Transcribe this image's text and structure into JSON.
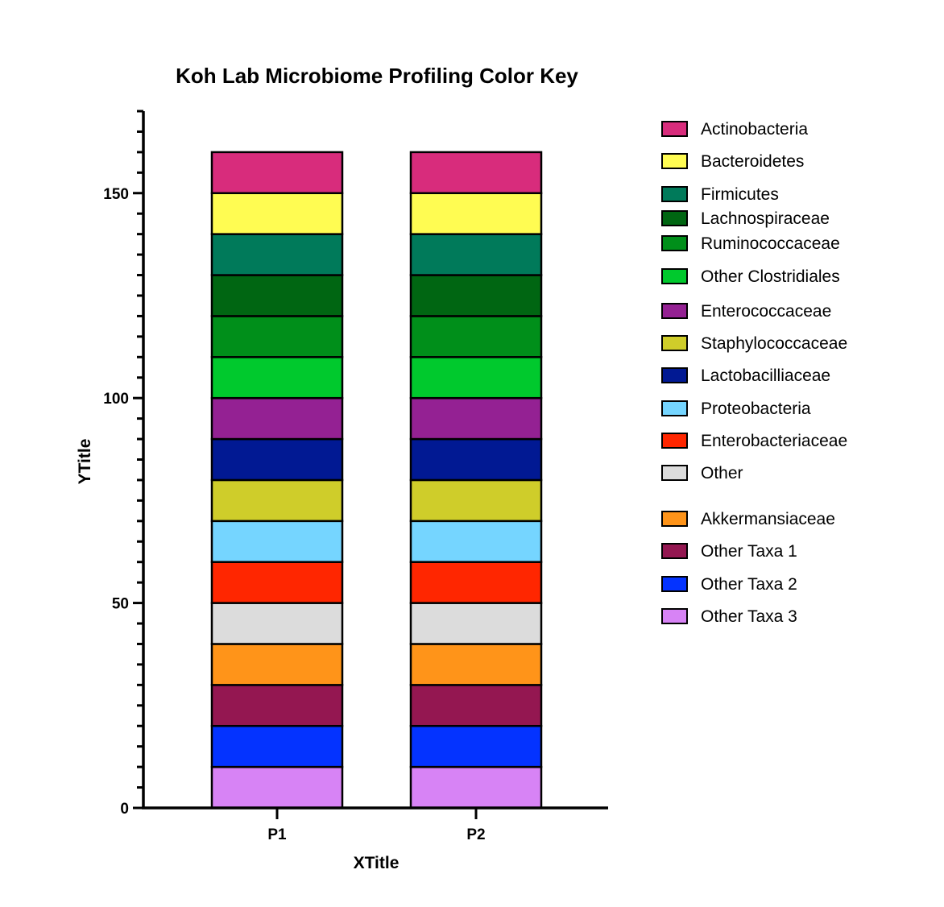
{
  "chart_data": {
    "type": "bar",
    "stacked": true,
    "title": "Koh Lab Microbiome Profiling Color Key",
    "xlabel": "XTitle",
    "ylabel": "YTitle",
    "categories": [
      "P1",
      "P2"
    ],
    "ylim": [
      0,
      170
    ],
    "yticks": [
      "0",
      "50",
      "100",
      "150"
    ],
    "legend_position": "right",
    "series": [
      {
        "name": "Other Taxa 3",
        "color": "#d783f5",
        "values": [
          10,
          10
        ]
      },
      {
        "name": "Other Taxa 2",
        "color": "#0433ff",
        "values": [
          10,
          10
        ]
      },
      {
        "name": "Other Taxa 1",
        "color": "#941751",
        "values": [
          10,
          10
        ]
      },
      {
        "name": "Akkermansiaceae",
        "color": "#ff9419",
        "values": [
          10,
          10
        ]
      },
      {
        "name": "Other",
        "color": "#dcdcdc",
        "values": [
          10,
          10
        ]
      },
      {
        "name": "Enterobacteriaceae",
        "color": "#ff2600",
        "values": [
          10,
          10
        ]
      },
      {
        "name": "Proteobacteria",
        "color": "#75d5ff",
        "values": [
          10,
          10
        ]
      },
      {
        "name": "Staphylococcaceae",
        "color": "#cfcd2a",
        "values": [
          10,
          10
        ]
      },
      {
        "name": "Lactobacilliaceae",
        "color": "#011993",
        "values": [
          10,
          10
        ]
      },
      {
        "name": "Enterococcaceae",
        "color": "#942193",
        "values": [
          10,
          10
        ]
      },
      {
        "name": "Other Clostridiales",
        "color": "#00c92d",
        "values": [
          10,
          10
        ]
      },
      {
        "name": "Ruminococcaceae",
        "color": "#008f1a",
        "values": [
          10,
          10
        ]
      },
      {
        "name": "Lachnospiraceae",
        "color": "#006612",
        "values": [
          10,
          10
        ]
      },
      {
        "name": "Firmicutes",
        "color": "#007a5a",
        "values": [
          10,
          10
        ]
      },
      {
        "name": "Bacteroidetes",
        "color": "#fffc52",
        "values": [
          10,
          10
        ]
      },
      {
        "name": "Actinobacteria",
        "color": "#d82c7c",
        "values": [
          10,
          10
        ]
      }
    ],
    "legend_order": [
      "Actinobacteria",
      "Bacteroidetes",
      "Firmicutes",
      "Lachnospiraceae",
      "Ruminococcaceae",
      "Other Clostridiales",
      "Enterococcaceae",
      "Staphylococcaceae",
      "Lactobacilliaceae",
      "Proteobacteria",
      "Enterobacteriaceae",
      "Other",
      "Akkermansiaceae",
      "Other Taxa 1",
      "Other Taxa 2",
      "Other Taxa 3"
    ]
  }
}
